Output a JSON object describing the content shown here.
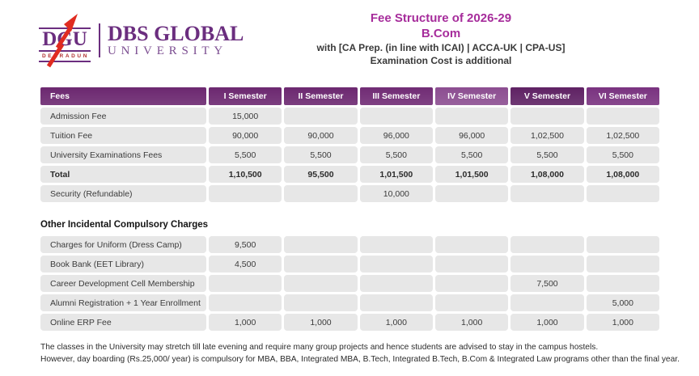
{
  "logo": {
    "acronym": "DGU",
    "city": "DEHRADUN",
    "name_line1": "DBS GLOBAL",
    "name_line2": "UNIVERSITY",
    "purple": "#6B2E7F",
    "arrow_red": "#E02B20"
  },
  "header": {
    "title_line1": "Fee Structure of 2026-29",
    "title_line2": "B.Com",
    "subtitle_line1": "with [CA Prep. (in line with ICAI) | ACCA-UK | CPA-US]",
    "subtitle_line2": "Examination Cost is additional",
    "title_color": "#A62C9B"
  },
  "fee_table": {
    "columns": [
      "Fees",
      "I Semester",
      "II Semester",
      "III Semester",
      "IV Semester",
      "V Semester",
      "VI Semester"
    ],
    "header_colors": [
      "#6C2870",
      "#6C2870",
      "#6C2870",
      "#712C75",
      "#8C4E91",
      "#5F2264",
      "#7A3380"
    ],
    "rows": [
      {
        "label": "Admission Fee",
        "values": [
          "15,000",
          "",
          "",
          "",
          "",
          ""
        ],
        "bold": false
      },
      {
        "label": "Tuition Fee",
        "values": [
          "90,000",
          "90,000",
          "96,000",
          "96,000",
          "1,02,500",
          "1,02,500"
        ],
        "bold": false
      },
      {
        "label": "University Examinations Fees",
        "values": [
          "5,500",
          "5,500",
          "5,500",
          "5,500",
          "5,500",
          "5,500"
        ],
        "bold": false
      },
      {
        "label": "Total",
        "values": [
          "1,10,500",
          "95,500",
          "1,01,500",
          "1,01,500",
          "1,08,000",
          "1,08,000"
        ],
        "bold": true
      },
      {
        "label": "Security (Refundable)",
        "values": [
          "",
          "",
          "10,000",
          "",
          "",
          ""
        ],
        "bold": false
      }
    ]
  },
  "incidental": {
    "heading": "Other Incidental Compulsory Charges",
    "rows": [
      {
        "label": "Charges for Uniform (Dress Camp)",
        "values": [
          "9,500",
          "",
          "",
          "",
          "",
          ""
        ],
        "bold": false
      },
      {
        "label": "Book Bank (EET Library)",
        "values": [
          "4,500",
          "",
          "",
          "",
          "",
          ""
        ],
        "bold": false
      },
      {
        "label": "Career Development Cell Membership",
        "values": [
          "",
          "",
          "",
          "",
          "7,500",
          ""
        ],
        "bold": false
      },
      {
        "label": "Alumni Registration + 1 Year Enrollment",
        "values": [
          "",
          "",
          "",
          "",
          "",
          "5,000"
        ],
        "bold": false
      },
      {
        "label": "Online ERP Fee",
        "values": [
          "1,000",
          "1,000",
          "1,000",
          "1,000",
          "1,000",
          "1,000"
        ],
        "bold": false
      }
    ]
  },
  "notes": {
    "line1": "The classes in the University may stretch till late evening and require many group projects and hence students are advised to stay in the campus hostels.",
    "line2": "However, day boarding (Rs.25,000/ year) is compulsory for MBA, BBA, Integrated MBA, B.Tech, Integrated B.Tech, B.Com & Integrated Law programs other than the final year."
  },
  "colors": {
    "cell_bg": "#E7E7E7",
    "cell_text": "#3B3B3B"
  }
}
